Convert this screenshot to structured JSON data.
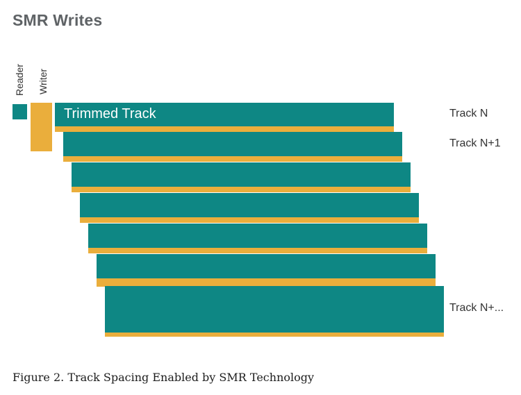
{
  "title": "SMR Writes",
  "labels": {
    "reader": "Reader",
    "writer": "Writer",
    "trimmed_track": "Trimmed Track",
    "track_n": "Track N",
    "track_n1": "Track N+1",
    "track_more": "Track N+..."
  },
  "caption": "Figure 2. Track Spacing Enabled by SMR Technology",
  "colors": {
    "track_teal": "#0e8784",
    "write_gold": "#eaae3c",
    "title_gray": "#5f6366"
  }
}
